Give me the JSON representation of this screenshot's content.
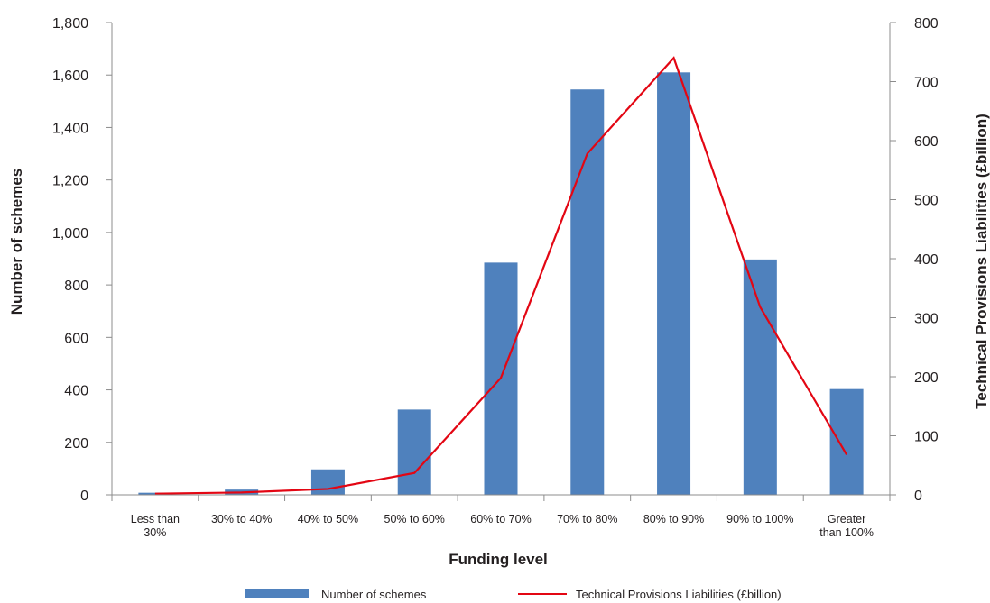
{
  "chart_data": {
    "type": "bar",
    "title": "",
    "categories": [
      [
        "Less than",
        "30%"
      ],
      [
        "30% to 40%"
      ],
      [
        "40% to 50%"
      ],
      [
        "50% to 60%"
      ],
      [
        "60% to 70%"
      ],
      [
        "70% to 80%"
      ],
      [
        "80% to 90%"
      ],
      [
        "90% to 100%"
      ],
      [
        "Greater",
        "than 100%"
      ]
    ],
    "xlabel": "Funding level",
    "ylabel": "Number of schemes",
    "y2label": "Technical Provisions Liabilities (£billion)",
    "ylim": [
      0,
      1800
    ],
    "y2lim": [
      0,
      800
    ],
    "yticks": [
      0,
      200,
      400,
      600,
      800,
      1000,
      1200,
      1400,
      1600,
      1800
    ],
    "y2ticks": [
      0,
      100,
      200,
      300,
      400,
      500,
      600,
      700,
      800
    ],
    "ytick_labels": [
      "0",
      "200",
      "400",
      "600",
      "800",
      "1,000",
      "1,200",
      "1,400",
      "1,600",
      "1,800"
    ],
    "y2tick_labels": [
      "0",
      "100",
      "200",
      "300",
      "400",
      "500",
      "600",
      "700",
      "800"
    ],
    "grid": false,
    "legend_position": "bottom",
    "series": [
      {
        "name": "Number of schemes",
        "type": "bar",
        "axis": "left",
        "color": "#4f81bd",
        "values": [
          8,
          20,
          97,
          325,
          885,
          1545,
          1610,
          897,
          403
        ]
      },
      {
        "name": "Technical Provisions Liabilities (£billion)",
        "type": "line",
        "axis": "right",
        "color": "#e30613",
        "values": [
          2,
          4,
          10,
          37,
          198,
          578,
          740,
          318,
          68
        ]
      }
    ]
  }
}
